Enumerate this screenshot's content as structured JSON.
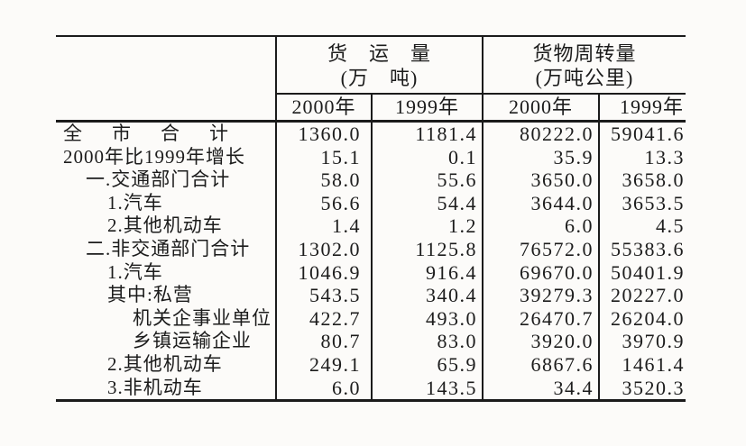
{
  "page": {
    "background": "#fcfbf9",
    "ink_color": "#1c1c1c",
    "rule_color": "#1b1b1b"
  },
  "table": {
    "groups": [
      {
        "title": "货　运　量",
        "unit": "(万　吨)"
      },
      {
        "title": "货物周转量",
        "unit": "(万吨公里)"
      }
    ],
    "year_headers": [
      "2000年",
      "1999年",
      "2000年",
      "1999年"
    ],
    "rows": [
      {
        "label": "全　市　合　计",
        "fv2000": "1360.0",
        "fv1999": "1181.4",
        "ft2000": "80222.0",
        "ft1999": "59041.6"
      },
      {
        "label": "2000年比1999年增长",
        "fv2000": "15.1",
        "fv1999": "0.1",
        "ft2000": "35.9",
        "ft1999": "13.3"
      },
      {
        "label": "一.交通部门合计",
        "fv2000": "58.0",
        "fv1999": "55.6",
        "ft2000": "3650.0",
        "ft1999": "3658.0"
      },
      {
        "label": "1.汽车",
        "fv2000": "56.6",
        "fv1999": "54.4",
        "ft2000": "3644.0",
        "ft1999": "3653.5"
      },
      {
        "label": "2.其他机动车",
        "fv2000": "1.4",
        "fv1999": "1.2",
        "ft2000": "6.0",
        "ft1999": "4.5"
      },
      {
        "label": "二.非交通部门合计",
        "fv2000": "1302.0",
        "fv1999": "1125.8",
        "ft2000": "76572.0",
        "ft1999": "55383.6"
      },
      {
        "label": "1.汽车",
        "fv2000": "1046.9",
        "fv1999": "916.4",
        "ft2000": "69670.0",
        "ft1999": "50401.9"
      },
      {
        "label": "其中:私营",
        "fv2000": "543.5",
        "fv1999": "340.4",
        "ft2000": "39279.3",
        "ft1999": "20227.0"
      },
      {
        "label": "机关企事业单位",
        "fv2000": "422.7",
        "fv1999": "493.0",
        "ft2000": "26470.7",
        "ft1999": "26204.0"
      },
      {
        "label": "乡镇运输企业",
        "fv2000": "80.7",
        "fv1999": "83.0",
        "ft2000": "3920.0",
        "ft1999": "3970.9"
      },
      {
        "label": "2.其他机动车",
        "fv2000": "249.1",
        "fv1999": "65.9",
        "ft2000": "6867.6",
        "ft1999": "1461.4"
      },
      {
        "label": "3.非机动车",
        "fv2000": "6.0",
        "fv1999": "143.5",
        "ft2000": "34.4",
        "ft1999": "3520.3"
      }
    ]
  }
}
